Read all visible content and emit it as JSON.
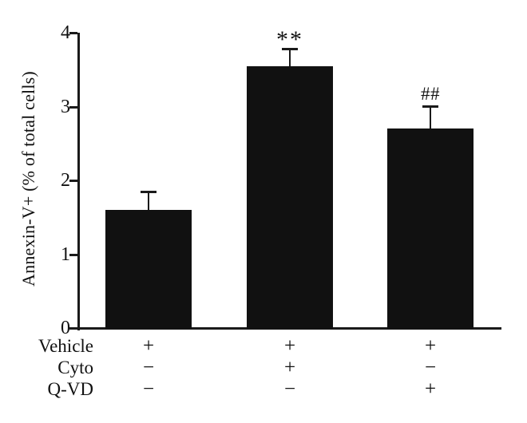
{
  "figure": {
    "background": "#ffffff",
    "text_color": "#111111"
  },
  "chart_data": {
    "type": "bar",
    "title": "",
    "xlabel": "",
    "ylabel": "Annexin-V+ (% of total cells)",
    "ylim": [
      0,
      4
    ],
    "yticks": [
      0,
      1,
      2,
      3,
      4
    ],
    "grid": "off",
    "legend": "none",
    "bar_color": "#111111",
    "axis_color": "#1a1a1a",
    "bars": [
      {
        "value": 1.6,
        "error": 0.25,
        "annotation": ""
      },
      {
        "value": 3.55,
        "error": 0.23,
        "annotation": "**"
      },
      {
        "value": 2.7,
        "error": 0.31,
        "annotation": "##"
      }
    ],
    "treatment_table": {
      "rows": [
        {
          "label": "Vehicle",
          "signs": [
            "+",
            "+",
            "+"
          ]
        },
        {
          "label": "Cyto",
          "signs": [
            "−",
            "+",
            "−"
          ]
        },
        {
          "label": "Q-VD",
          "signs": [
            "−",
            "−",
            "+"
          ]
        }
      ]
    }
  }
}
